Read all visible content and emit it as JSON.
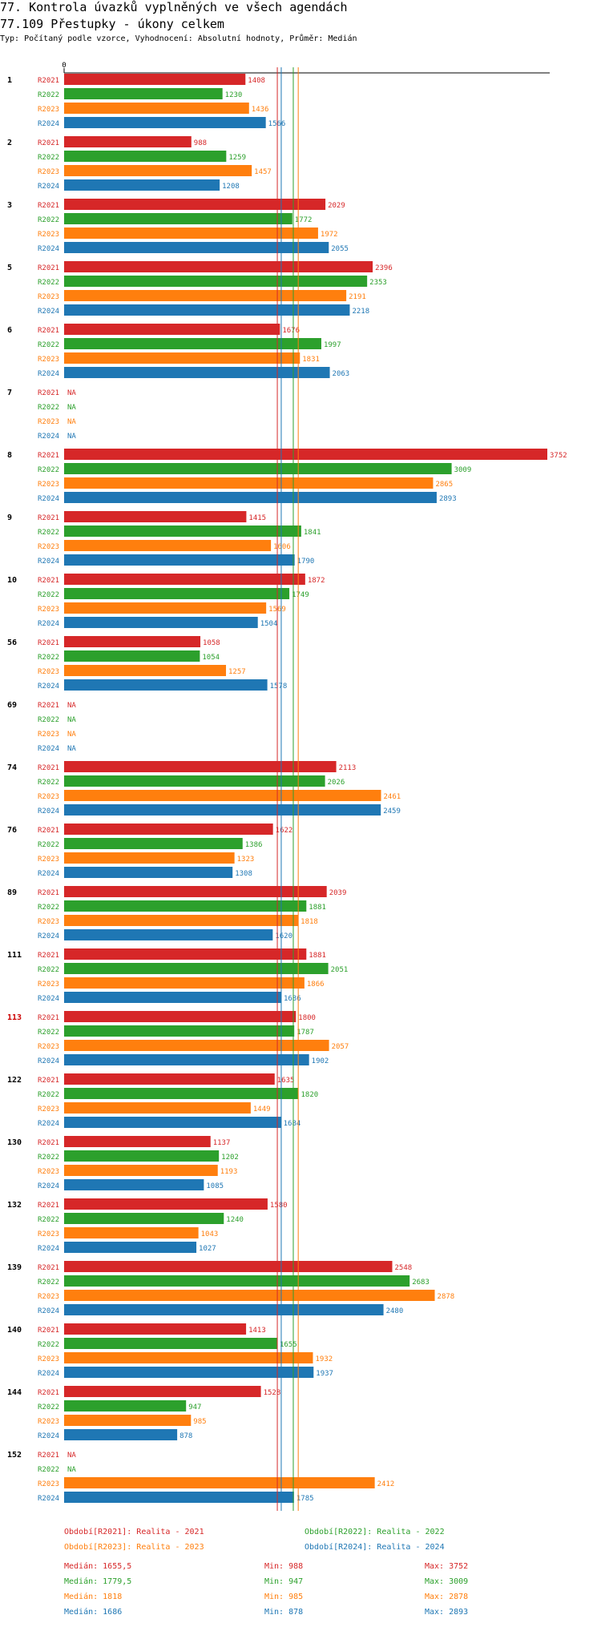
{
  "title": "77. Kontrola úvazků vyplněných ve všech agendách",
  "subtitle": "77.109 Přestupky - úkony celkem",
  "meta": "Typ: Počítaný podle vzorce, Vyhodnocení: Absolutní hodnoty, Průměr: Medián",
  "colors": {
    "R2021": "#d62728",
    "R2022": "#2ca02c",
    "R2023": "#ff7f0e",
    "R2024": "#1f77b4",
    "highlight": "#cc0000"
  },
  "chart_data": {
    "type": "bar",
    "orientation": "horizontal",
    "axis_zero_label": "0",
    "xlim": [
      0,
      3752
    ],
    "series_names": [
      "R2021",
      "R2022",
      "R2023",
      "R2024"
    ],
    "na_label": "NA",
    "groups": [
      {
        "label": "1",
        "values": [
          1408,
          1230,
          1436,
          1566
        ]
      },
      {
        "label": "2",
        "values": [
          988,
          1259,
          1457,
          1208
        ]
      },
      {
        "label": "3",
        "values": [
          2029,
          1772,
          1972,
          2055
        ]
      },
      {
        "label": "5",
        "values": [
          2396,
          2353,
          2191,
          2218
        ]
      },
      {
        "label": "6",
        "values": [
          1676,
          1997,
          1831,
          2063
        ]
      },
      {
        "label": "7",
        "values": [
          null,
          null,
          null,
          null
        ]
      },
      {
        "label": "8",
        "values": [
          3752,
          3009,
          2865,
          2893
        ]
      },
      {
        "label": "9",
        "values": [
          1415,
          1841,
          1606,
          1790
        ]
      },
      {
        "label": "10",
        "values": [
          1872,
          1749,
          1569,
          1504
        ]
      },
      {
        "label": "56",
        "values": [
          1058,
          1054,
          1257,
          1578
        ]
      },
      {
        "label": "69",
        "values": [
          null,
          null,
          null,
          null
        ]
      },
      {
        "label": "74",
        "values": [
          2113,
          2026,
          2461,
          2459
        ]
      },
      {
        "label": "76",
        "values": [
          1622,
          1386,
          1323,
          1308
        ]
      },
      {
        "label": "89",
        "values": [
          2039,
          1881,
          1818,
          1620
        ]
      },
      {
        "label": "111",
        "values": [
          1881,
          2051,
          1866,
          1686
        ]
      },
      {
        "label": "113",
        "highlight": true,
        "values": [
          1800,
          1787,
          2057,
          1902
        ]
      },
      {
        "label": "122",
        "values": [
          1635,
          1820,
          1449,
          1684
        ]
      },
      {
        "label": "130",
        "values": [
          1137,
          1202,
          1193,
          1085
        ]
      },
      {
        "label": "132",
        "values": [
          1580,
          1240,
          1043,
          1027
        ]
      },
      {
        "label": "139",
        "values": [
          2548,
          2683,
          2878,
          2480
        ]
      },
      {
        "label": "140",
        "values": [
          1413,
          1655,
          1932,
          1937
        ]
      },
      {
        "label": "144",
        "values": [
          1528,
          947,
          985,
          878
        ]
      },
      {
        "label": "152",
        "values": [
          null,
          null,
          2412,
          1785
        ]
      }
    ],
    "medians": [
      1655.5,
      1779.5,
      1818,
      1686
    ]
  },
  "legend": [
    {
      "series": "R2021",
      "text": "Období[R2021]: Realita - 2021"
    },
    {
      "series": "R2022",
      "text": "Období[R2022]: Realita - 2022"
    },
    {
      "series": "R2023",
      "text": "Období[R2023]: Realita - 2023"
    },
    {
      "series": "R2024",
      "text": "Období[R2024]: Realita - 2024"
    }
  ],
  "stats": [
    {
      "series": "R2021",
      "median": "Medián: 1655,5",
      "min": "Min: 988",
      "max": "Max: 3752"
    },
    {
      "series": "R2022",
      "median": "Medián: 1779,5",
      "min": "Min: 947",
      "max": "Max: 3009"
    },
    {
      "series": "R2023",
      "median": "Medián: 1818",
      "min": "Min: 985",
      "max": "Max: 2878"
    },
    {
      "series": "R2024",
      "median": "Medián: 1686",
      "min": "Min: 878",
      "max": "Max: 2893"
    }
  ]
}
